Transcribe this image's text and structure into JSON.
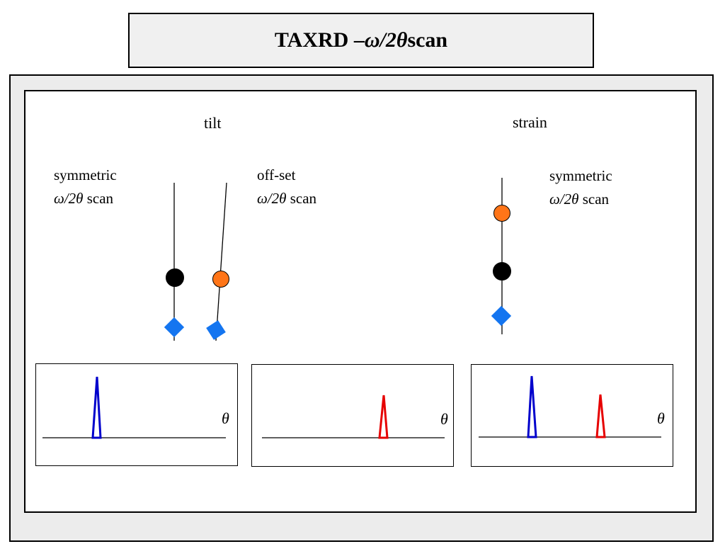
{
  "title": {
    "prefix": "TAXRD – ",
    "math": "ω/2θ",
    "suffix": " scan"
  },
  "sections": {
    "tilt": "tilt",
    "strain": "strain"
  },
  "scan_labels": [
    {
      "line1": "symmetric",
      "math": "ω/2θ",
      "suffix": " scan"
    },
    {
      "line1": "off-set",
      "math": "ω/2θ",
      "suffix": " scan"
    },
    {
      "line1": "symmetric",
      "math": "ω/2θ",
      "suffix": " scan"
    }
  ],
  "plots": [
    {
      "axis_label": "θ"
    },
    {
      "axis_label": "θ"
    },
    {
      "axis_label": "θ"
    }
  ],
  "colors": {
    "substrate_atom": "#000000",
    "layer_atom": "#ff7518",
    "diamond_marker": "#1475f0",
    "peak_substrate": "#0000cc",
    "peak_layer": "#e60000"
  }
}
